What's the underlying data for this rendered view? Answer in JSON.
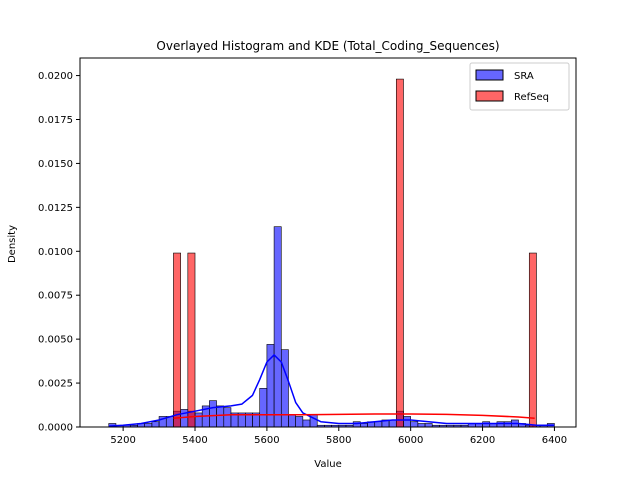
{
  "chart_data": {
    "type": "bar",
    "title": "Overlayed Histogram and KDE (Total_Coding_Sequences)",
    "xlabel": "Value",
    "ylabel": "Density",
    "xlim": [
      5080,
      6460
    ],
    "ylim": [
      0,
      0.021
    ],
    "x_ticks": [
      5200,
      5400,
      5600,
      5800,
      6000,
      6200,
      6400
    ],
    "y_ticks": [
      0.0,
      0.0025,
      0.005,
      0.0075,
      0.01,
      0.0125,
      0.015,
      0.0175,
      0.02
    ],
    "x_tick_labels": [
      "5200",
      "5400",
      "5600",
      "5800",
      "6000",
      "6200",
      "6400"
    ],
    "y_tick_labels": [
      "0.0000",
      "0.0025",
      "0.0050",
      "0.0075",
      "0.0100",
      "0.0125",
      "0.0150",
      "0.0175",
      "0.0200"
    ],
    "legend_position": "top-right",
    "grid": false,
    "series": [
      {
        "name": "SRA",
        "color": "#0000ff",
        "bin_width": 20,
        "bins": [
          [
            5160,
            0.0002
          ],
          [
            5180,
            0.0001
          ],
          [
            5200,
            0.0001
          ],
          [
            5220,
            0.0001
          ],
          [
            5240,
            0.0002
          ],
          [
            5260,
            0.0002
          ],
          [
            5280,
            0.0003
          ],
          [
            5300,
            0.0006
          ],
          [
            5320,
            0.0006
          ],
          [
            5340,
            0.0009
          ],
          [
            5360,
            0.001
          ],
          [
            5380,
            0.0009
          ],
          [
            5400,
            0.0008
          ],
          [
            5420,
            0.0012
          ],
          [
            5440,
            0.0015
          ],
          [
            5460,
            0.0012
          ],
          [
            5480,
            0.0011
          ],
          [
            5500,
            0.0008
          ],
          [
            5520,
            0.0008
          ],
          [
            5540,
            0.0008
          ],
          [
            5560,
            0.0008
          ],
          [
            5580,
            0.0022
          ],
          [
            5600,
            0.0047
          ],
          [
            5620,
            0.0114
          ],
          [
            5640,
            0.0044
          ],
          [
            5660,
            0.0007
          ],
          [
            5680,
            0.0006
          ],
          [
            5700,
            0.0004
          ],
          [
            5720,
            0.0007
          ],
          [
            5740,
            0.0001
          ],
          [
            5760,
            0.0001
          ],
          [
            5780,
            0.0001
          ],
          [
            5800,
            0.0001
          ],
          [
            5820,
            0.0001
          ],
          [
            5840,
            0.0003
          ],
          [
            5860,
            0.0002
          ],
          [
            5880,
            0.0003
          ],
          [
            5900,
            0.0003
          ],
          [
            5920,
            0.0004
          ],
          [
            5940,
            0.0004
          ],
          [
            5960,
            0.0009
          ],
          [
            5980,
            0.0006
          ],
          [
            6000,
            0.0003
          ],
          [
            6020,
            0.0002
          ],
          [
            6040,
            0.0002
          ],
          [
            6060,
            0.0001
          ],
          [
            6080,
            0.0001
          ],
          [
            6100,
            0.0001
          ],
          [
            6120,
            0.0001
          ],
          [
            6140,
            0.0001
          ],
          [
            6160,
            0.0002
          ],
          [
            6180,
            0.0002
          ],
          [
            6200,
            0.0003
          ],
          [
            6220,
            0.0002
          ],
          [
            6240,
            0.0003
          ],
          [
            6260,
            0.0003
          ],
          [
            6280,
            0.0004
          ],
          [
            6300,
            0.0002
          ],
          [
            6320,
            0.0001
          ],
          [
            6340,
            0.0001
          ],
          [
            6360,
            0.0001
          ],
          [
            6380,
            0.0002
          ]
        ],
        "kde": [
          [
            5160,
            5e-05
          ],
          [
            5200,
            0.0001
          ],
          [
            5250,
            0.0002
          ],
          [
            5300,
            0.0004
          ],
          [
            5350,
            0.0007
          ],
          [
            5400,
            0.0009
          ],
          [
            5450,
            0.0011
          ],
          [
            5500,
            0.0012
          ],
          [
            5530,
            0.0013
          ],
          [
            5560,
            0.0018
          ],
          [
            5580,
            0.0027
          ],
          [
            5600,
            0.0037
          ],
          [
            5620,
            0.0041
          ],
          [
            5640,
            0.0037
          ],
          [
            5660,
            0.0026
          ],
          [
            5680,
            0.0014
          ],
          [
            5700,
            0.0008
          ],
          [
            5750,
            0.0003
          ],
          [
            5800,
            0.0002
          ],
          [
            5850,
            0.0002
          ],
          [
            5900,
            0.0003
          ],
          [
            5950,
            0.0004
          ],
          [
            6000,
            0.0004
          ],
          [
            6050,
            0.0003
          ],
          [
            6100,
            0.0002
          ],
          [
            6150,
            0.0002
          ],
          [
            6200,
            0.0002
          ],
          [
            6250,
            0.0002
          ],
          [
            6300,
            0.0002
          ],
          [
            6350,
            0.0001
          ],
          [
            6400,
            0.0001
          ]
        ]
      },
      {
        "name": "RefSeq",
        "color": "#ff0000",
        "bin_width": 20,
        "bins": [
          [
            5340,
            0.0099
          ],
          [
            5380,
            0.0099
          ],
          [
            5960,
            0.0198
          ],
          [
            6330,
            0.0099
          ]
        ],
        "kde": [
          [
            5340,
            0.0005
          ],
          [
            5400,
            0.0006
          ],
          [
            5500,
            0.0007
          ],
          [
            5600,
            0.0007
          ],
          [
            5700,
            0.0007
          ],
          [
            5800,
            0.00072
          ],
          [
            5900,
            0.00074
          ],
          [
            6000,
            0.00074
          ],
          [
            6100,
            0.00072
          ],
          [
            6200,
            0.00066
          ],
          [
            6300,
            0.00057
          ],
          [
            6345,
            0.0005
          ]
        ]
      }
    ]
  }
}
